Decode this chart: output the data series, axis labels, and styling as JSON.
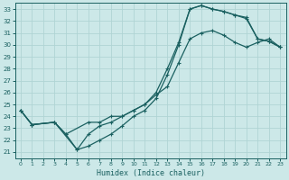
{
  "xlabel": "Humidex (Indice chaleur)",
  "bg_color": "#cce8e8",
  "grid_color": "#b0d4d4",
  "line_color": "#1a6060",
  "xlim": [
    -0.5,
    23.5
  ],
  "ylim": [
    20.5,
    33.5
  ],
  "xticks": [
    0,
    1,
    2,
    3,
    4,
    5,
    6,
    7,
    8,
    9,
    10,
    11,
    12,
    13,
    14,
    15,
    16,
    17,
    18,
    19,
    20,
    21,
    22,
    23
  ],
  "yticks": [
    21,
    22,
    23,
    24,
    25,
    26,
    27,
    28,
    29,
    30,
    31,
    32,
    33
  ],
  "line1_x": [
    0,
    1,
    3,
    4,
    5,
    6,
    7,
    8,
    9,
    10,
    11,
    12,
    13,
    14,
    15,
    16,
    17,
    18,
    19,
    20,
    21,
    22,
    23
  ],
  "line1_y": [
    24.5,
    23.3,
    23.5,
    22.5,
    21.2,
    21.5,
    22.0,
    22.5,
    23.2,
    24.0,
    24.5,
    25.5,
    27.5,
    30.0,
    33.0,
    33.3,
    33.0,
    32.8,
    32.5,
    32.3,
    30.5,
    30.3,
    29.8
  ],
  "line2_x": [
    0,
    1,
    3,
    4,
    6,
    7,
    8,
    9,
    10,
    11,
    12,
    13,
    14,
    15,
    16,
    17,
    18,
    19,
    20,
    21,
    22,
    23
  ],
  "line2_y": [
    24.5,
    23.3,
    23.5,
    22.5,
    23.5,
    23.5,
    24.0,
    24.0,
    24.5,
    25.0,
    25.8,
    26.5,
    28.5,
    30.5,
    31.0,
    31.2,
    30.8,
    30.2,
    29.8,
    30.2,
    30.5,
    29.8
  ],
  "line3_x": [
    0,
    1,
    3,
    5,
    6,
    7,
    8,
    9,
    10,
    11,
    12,
    13,
    14,
    15,
    16,
    17,
    18,
    19,
    20,
    21,
    22,
    23
  ],
  "line3_y": [
    24.5,
    23.3,
    23.5,
    21.2,
    22.5,
    23.2,
    23.5,
    24.0,
    24.5,
    25.0,
    26.0,
    28.0,
    30.2,
    33.0,
    33.3,
    33.0,
    32.8,
    32.5,
    32.2,
    30.5,
    30.3,
    29.8
  ]
}
